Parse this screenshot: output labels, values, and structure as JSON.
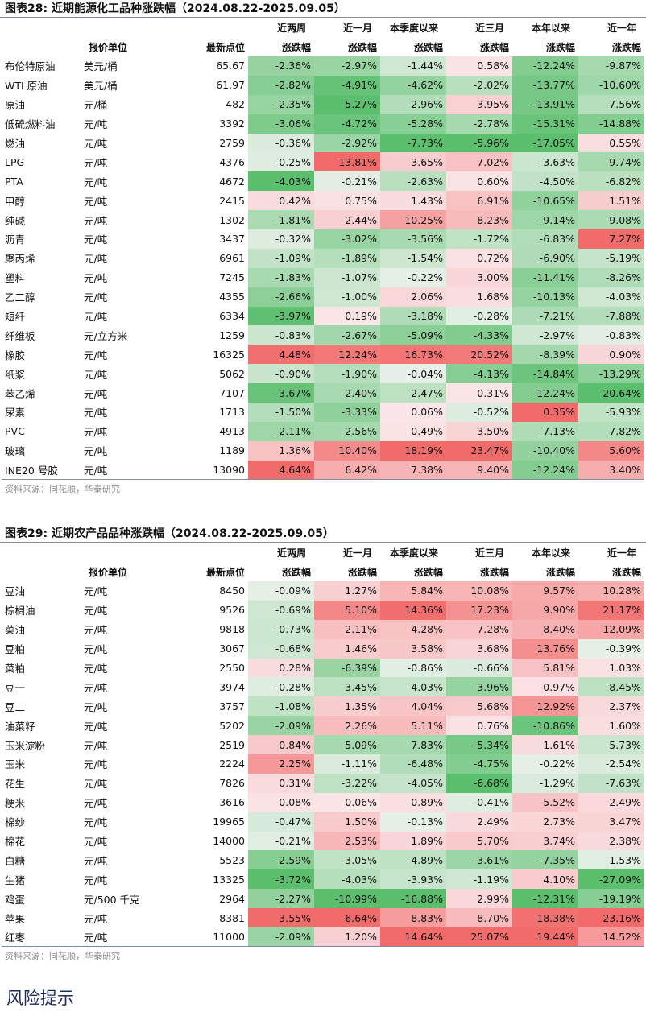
{
  "tables": [
    {
      "title": "图表28:   近期能源化工品种涨跌幅（2024.08.22-2025.09.05）",
      "header_top": [
        "近两周",
        "近一月",
        "本季度以来",
        "近三月",
        "本年以来",
        "近一年"
      ],
      "header_bottom": [
        "报价单位",
        "最新点位",
        "涨跌幅",
        "涨跌幅",
        "涨跌幅",
        "涨跌幅",
        "涨跌幅",
        "涨跌幅"
      ],
      "rows": [
        {
          "name": "布伦特原油",
          "unit": "美元/桶",
          "price": "65.67",
          "values": [
            "-2.36%",
            "-2.97%",
            "-1.44%",
            "0.58%",
            "-12.24%",
            "-9.87%"
          ]
        },
        {
          "name": "WTI 原油",
          "unit": "美元/桶",
          "price": "61.97",
          "values": [
            "-2.82%",
            "-4.91%",
            "-4.62%",
            "-2.02%",
            "-13.77%",
            "-10.60%"
          ]
        },
        {
          "name": "原油",
          "unit": "元/桶",
          "price": "482",
          "values": [
            "-2.35%",
            "-5.27%",
            "-2.96%",
            "3.95%",
            "-13.91%",
            "-7.56%"
          ]
        },
        {
          "name": "低硫燃料油",
          "unit": "元/吨",
          "price": "3392",
          "values": [
            "-3.06%",
            "-4.72%",
            "-5.28%",
            "-2.78%",
            "-15.31%",
            "-14.88%"
          ]
        },
        {
          "name": "燃油",
          "unit": "元/吨",
          "price": "2759",
          "values": [
            "-0.36%",
            "-2.92%",
            "-7.73%",
            "-5.96%",
            "-17.05%",
            "0.55%"
          ]
        },
        {
          "name": "LPG",
          "unit": "元/吨",
          "price": "4376",
          "values": [
            "-0.25%",
            "13.81%",
            "3.65%",
            "7.02%",
            "-3.63%",
            "-9.74%"
          ]
        },
        {
          "name": "PTA",
          "unit": "元/吨",
          "price": "4672",
          "values": [
            "-4.03%",
            "-0.21%",
            "-2.63%",
            "0.60%",
            "-4.50%",
            "-6.82%"
          ]
        },
        {
          "name": "甲醇",
          "unit": "元/吨",
          "price": "2415",
          "values": [
            "0.42%",
            "0.75%",
            "1.43%",
            "6.91%",
            "-10.65%",
            "1.51%"
          ]
        },
        {
          "name": "纯碱",
          "unit": "元/吨",
          "price": "1302",
          "values": [
            "-1.81%",
            "2.44%",
            "10.25%",
            "8.23%",
            "-9.14%",
            "-9.08%"
          ]
        },
        {
          "name": "沥青",
          "unit": "元/吨",
          "price": "3437",
          "values": [
            "-0.32%",
            "-3.02%",
            "-3.56%",
            "-1.72%",
            "-6.83%",
            "7.27%"
          ]
        },
        {
          "name": "聚丙烯",
          "unit": "元/吨",
          "price": "6961",
          "values": [
            "-1.09%",
            "-1.89%",
            "-1.54%",
            "0.72%",
            "-6.90%",
            "-5.19%"
          ]
        },
        {
          "name": "塑料",
          "unit": "元/吨",
          "price": "7245",
          "values": [
            "-1.83%",
            "-1.07%",
            "-0.22%",
            "3.00%",
            "-11.41%",
            "-8.26%"
          ]
        },
        {
          "name": "乙二醇",
          "unit": "元/吨",
          "price": "4355",
          "values": [
            "-2.66%",
            "-1.00%",
            "2.06%",
            "1.68%",
            "-10.13%",
            "-4.03%"
          ]
        },
        {
          "name": "短纤",
          "unit": "元/吨",
          "price": "6334",
          "values": [
            "-3.97%",
            "0.19%",
            "-3.18%",
            "-0.28%",
            "-7.21%",
            "-7.88%"
          ]
        },
        {
          "name": "纤维板",
          "unit": "元/立方米",
          "price": "1259",
          "values": [
            "-0.83%",
            "-2.67%",
            "-5.09%",
            "-4.33%",
            "-2.97%",
            "-0.83%"
          ]
        },
        {
          "name": "橡胶",
          "unit": "元/吨",
          "price": "16325",
          "values": [
            "4.48%",
            "12.24%",
            "16.73%",
            "20.52%",
            "-8.39%",
            "0.90%"
          ]
        },
        {
          "name": "纸浆",
          "unit": "元/吨",
          "price": "5062",
          "values": [
            "-0.90%",
            "-1.90%",
            "-0.04%",
            "-4.13%",
            "-14.84%",
            "-13.29%"
          ]
        },
        {
          "name": "苯乙烯",
          "unit": "元/吨",
          "price": "7107",
          "values": [
            "-3.67%",
            "-2.40%",
            "-2.47%",
            "0.31%",
            "-12.24%",
            "-20.64%"
          ]
        },
        {
          "name": "尿素",
          "unit": "元/吨",
          "price": "1713",
          "values": [
            "-1.50%",
            "-3.33%",
            "0.06%",
            "-0.52%",
            "0.35%",
            "-5.93%"
          ]
        },
        {
          "name": "PVC",
          "unit": "元/吨",
          "price": "4913",
          "values": [
            "-2.11%",
            "-2.56%",
            "0.49%",
            "3.50%",
            "-7.13%",
            "-7.82%"
          ]
        },
        {
          "name": "玻璃",
          "unit": "元/吨",
          "price": "1189",
          "values": [
            "1.36%",
            "10.40%",
            "18.19%",
            "23.47%",
            "-10.40%",
            "5.60%"
          ]
        },
        {
          "name": "INE20 号胶",
          "unit": "元/吨",
          "price": "13090",
          "values": [
            "4.64%",
            "6.42%",
            "7.38%",
            "9.40%",
            "-12.24%",
            "3.40%"
          ]
        }
      ],
      "source": "资料来源：同花顺，华泰研究"
    },
    {
      "title": "图表29:   近期农产品品种涨跌幅（2024.08.22-2025.09.05）",
      "header_top": [
        "近两周",
        "近一月",
        "本季度以来",
        "近三月",
        "本年以来",
        "近一年"
      ],
      "header_bottom": [
        "报价单位",
        "最新点位",
        "涨跌幅",
        "涨跌幅",
        "涨跌幅",
        "涨跌幅",
        "涨跌幅",
        "涨跌幅"
      ],
      "rows": [
        {
          "name": "豆油",
          "unit": "元/吨",
          "price": "8450",
          "values": [
            "-0.09%",
            "1.27%",
            "5.84%",
            "10.08%",
            "9.57%",
            "10.28%"
          ]
        },
        {
          "name": "棕榈油",
          "unit": "元/吨",
          "price": "9526",
          "values": [
            "-0.69%",
            "5.10%",
            "14.36%",
            "17.23%",
            "9.90%",
            "21.17%"
          ]
        },
        {
          "name": "菜油",
          "unit": "元/吨",
          "price": "9818",
          "values": [
            "-0.73%",
            "2.11%",
            "4.28%",
            "7.28%",
            "8.40%",
            "12.09%"
          ]
        },
        {
          "name": "豆粕",
          "unit": "元/吨",
          "price": "3067",
          "values": [
            "-0.68%",
            "1.46%",
            "3.58%",
            "3.68%",
            "13.76%",
            "-0.39%"
          ]
        },
        {
          "name": "菜粕",
          "unit": "元/吨",
          "price": "2550",
          "values": [
            "0.28%",
            "-6.39%",
            "-0.86%",
            "-0.66%",
            "5.81%",
            "1.03%"
          ]
        },
        {
          "name": "豆一",
          "unit": "元/吨",
          "price": "3974",
          "values": [
            "-0.28%",
            "-3.45%",
            "-4.03%",
            "-3.96%",
            "0.97%",
            "-8.45%"
          ]
        },
        {
          "name": "豆二",
          "unit": "元/吨",
          "price": "3757",
          "values": [
            "-1.08%",
            "1.35%",
            "4.04%",
            "5.68%",
            "12.92%",
            "2.37%"
          ]
        },
        {
          "name": "油菜籽",
          "unit": "元/吨",
          "price": "5202",
          "values": [
            "-2.09%",
            "2.26%",
            "5.11%",
            "0.76%",
            "-10.86%",
            "1.60%"
          ]
        },
        {
          "name": "玉米淀粉",
          "unit": "元/吨",
          "price": "2519",
          "values": [
            "0.84%",
            "-5.09%",
            "-7.83%",
            "-5.34%",
            "1.61%",
            "-5.73%"
          ]
        },
        {
          "name": "玉米",
          "unit": "元/吨",
          "price": "2224",
          "values": [
            "2.25%",
            "-1.11%",
            "-6.48%",
            "-4.75%",
            "-0.22%",
            "-2.54%"
          ]
        },
        {
          "name": "花生",
          "unit": "元/吨",
          "price": "7826",
          "values": [
            "0.31%",
            "-3.22%",
            "-4.05%",
            "-6.68%",
            "-1.29%",
            "-7.63%"
          ]
        },
        {
          "name": "粳米",
          "unit": "元/吨",
          "price": "3616",
          "values": [
            "0.08%",
            "0.06%",
            "0.89%",
            "-0.41%",
            "5.52%",
            "2.49%"
          ]
        },
        {
          "name": "棉纱",
          "unit": "元/吨",
          "price": "19965",
          "values": [
            "-0.47%",
            "1.50%",
            "-0.13%",
            "2.49%",
            "2.73%",
            "3.47%"
          ]
        },
        {
          "name": "棉花",
          "unit": "元/吨",
          "price": "14000",
          "values": [
            "-0.21%",
            "2.53%",
            "1.89%",
            "5.70%",
            "3.74%",
            "2.38%"
          ]
        },
        {
          "name": "白糖",
          "unit": "元/吨",
          "price": "5523",
          "values": [
            "-2.59%",
            "-3.05%",
            "-4.89%",
            "-3.61%",
            "-7.35%",
            "-1.53%"
          ]
        },
        {
          "name": "生猪",
          "unit": "元/吨",
          "price": "13325",
          "values": [
            "-3.72%",
            "-4.03%",
            "-3.93%",
            "-1.19%",
            "4.10%",
            "-27.09%"
          ]
        },
        {
          "name": "鸡蛋",
          "unit": "元/500 千克",
          "price": "2964",
          "values": [
            "-2.27%",
            "-10.99%",
            "-16.88%",
            "2.99%",
            "-12.31%",
            "-19.19%"
          ]
        },
        {
          "name": "苹果",
          "unit": "元/吨",
          "price": "8381",
          "values": [
            "3.55%",
            "6.64%",
            "8.83%",
            "8.70%",
            "18.38%",
            "23.16%"
          ]
        },
        {
          "name": "红枣",
          "unit": "元/吨",
          "price": "11000",
          "values": [
            "-2.09%",
            "1.20%",
            "14.64%",
            "25.07%",
            "19.44%",
            "14.52%"
          ]
        }
      ],
      "source": "资料来源：同花顺，华泰研究"
    }
  ],
  "footer_heading": "风险提示",
  "colors": {
    "positive_max": "#f26b6b",
    "negative_max": "#5cbf6e",
    "neutral": "#fbf7f9",
    "rule": "#7f8aa6"
  }
}
